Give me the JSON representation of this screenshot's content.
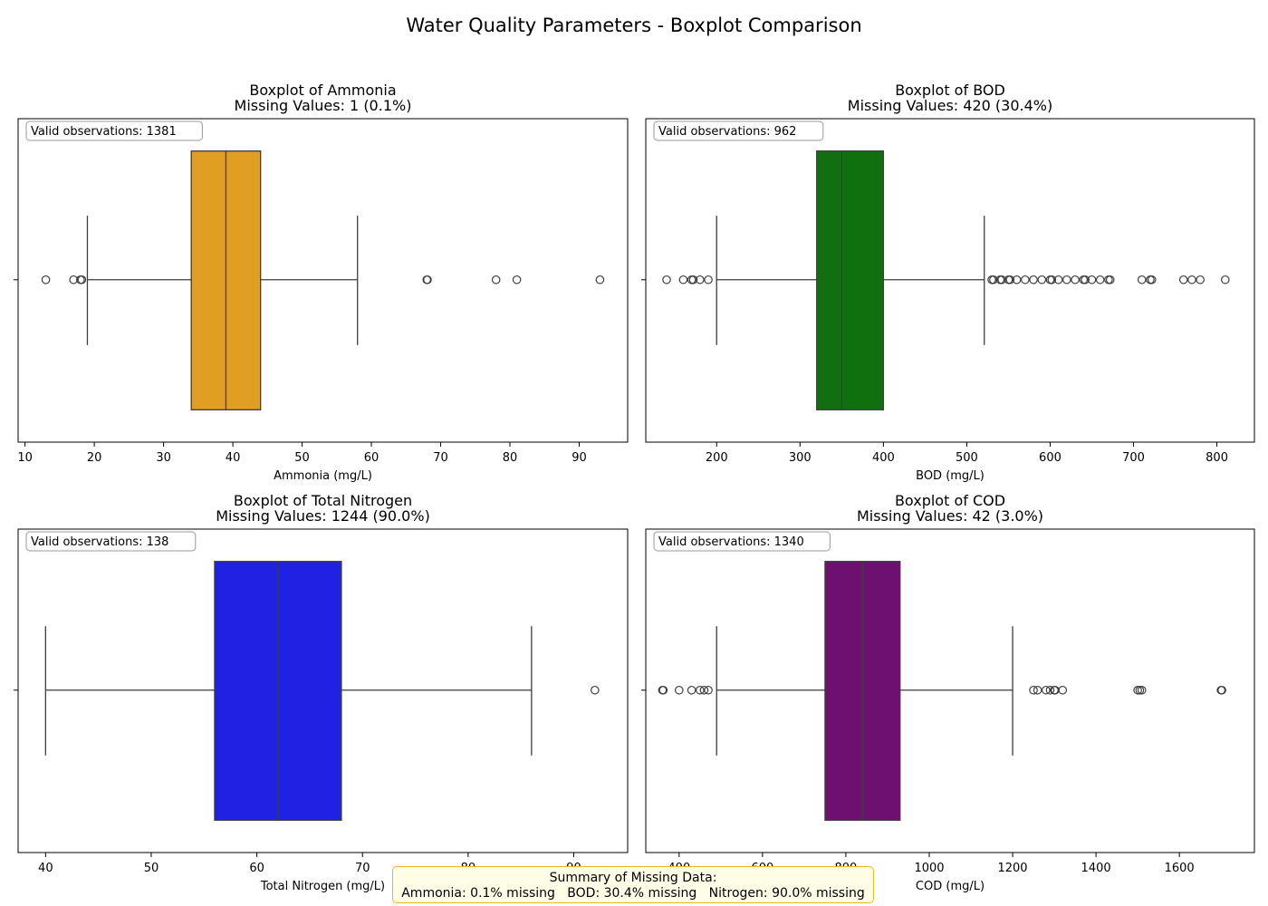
{
  "figure_title": "Water Quality Parameters - Boxplot Comparison",
  "summary": {
    "heading": "Summary of Missing Data:",
    "line": "Ammonia: 0.1% missing   BOD: 30.4% missing   Nitrogen: 90.0% missing"
  },
  "colors": {
    "ammonia": "#e09e22",
    "bod": "#107010",
    "nitrogen": "#2121e3",
    "cod": "#6e1070",
    "whisker": "#3d3d3d",
    "summary_bg": "#fffde6",
    "summary_border": "#f0b429"
  },
  "chart_data": [
    {
      "type": "boxplot",
      "title": "Boxplot of Ammonia",
      "subtitle": "Missing Values: 1 (0.1%)",
      "annotation": "Valid observations: 1381",
      "xlabel": "Ammonia (mg/L)",
      "xlim": [
        9,
        97
      ],
      "xticks": [
        10,
        20,
        30,
        40,
        50,
        60,
        70,
        80,
        90
      ],
      "whisker_low": 19,
      "q1": 34,
      "median": 39,
      "q3": 44,
      "whisker_high": 58,
      "outliers": [
        13,
        17,
        18,
        18.2,
        68,
        68.1,
        78,
        81,
        93
      ],
      "color_key": "ammonia"
    },
    {
      "type": "boxplot",
      "title": "Boxplot of BOD",
      "subtitle": "Missing Values: 420 (30.4%)",
      "annotation": "Valid observations: 962",
      "xlabel": "BOD (mg/L)",
      "xlim": [
        115,
        845
      ],
      "xticks": [
        200,
        300,
        400,
        500,
        600,
        700,
        800
      ],
      "whisker_low": 200,
      "q1": 320,
      "median": 350,
      "q3": 400,
      "whisker_high": 521,
      "outliers": [
        140,
        160,
        170,
        172,
        180,
        190,
        530,
        532,
        540,
        542,
        550,
        552,
        560,
        570,
        580,
        590,
        600,
        602,
        610,
        620,
        630,
        640,
        642,
        650,
        660,
        670,
        672,
        710,
        720,
        722,
        760,
        770,
        780,
        810
      ],
      "color_key": "bod"
    },
    {
      "type": "boxplot",
      "title": "Boxplot of Total Nitrogen",
      "subtitle": "Missing Values: 1244 (90.0%)",
      "annotation": "Valid observations: 138",
      "xlabel": "Total Nitrogen (mg/L)",
      "xlim": [
        37.4,
        95.1
      ],
      "xticks": [
        40,
        50,
        60,
        70,
        80,
        90
      ],
      "whisker_low": 40,
      "q1": 56,
      "median": 62,
      "q3": 68,
      "whisker_high": 86,
      "outliers": [
        92
      ],
      "color_key": "nitrogen"
    },
    {
      "type": "boxplot",
      "title": "Boxplot of COD",
      "subtitle": "Missing Values: 42 (3.0%)",
      "annotation": "Valid observations: 1340",
      "xlabel": "COD (mg/L)",
      "xlim": [
        320,
        1780
      ],
      "xticks": [
        400,
        600,
        800,
        1000,
        1200,
        1400,
        1600
      ],
      "whisker_low": 490,
      "q1": 750,
      "median": 840,
      "q3": 930,
      "whisker_high": 1200,
      "outliers": [
        360,
        362,
        400,
        430,
        450,
        460,
        470,
        1250,
        1260,
        1280,
        1290,
        1300,
        1302,
        1320,
        1500,
        1505,
        1510,
        1700,
        1702
      ],
      "color_key": "cod"
    }
  ]
}
